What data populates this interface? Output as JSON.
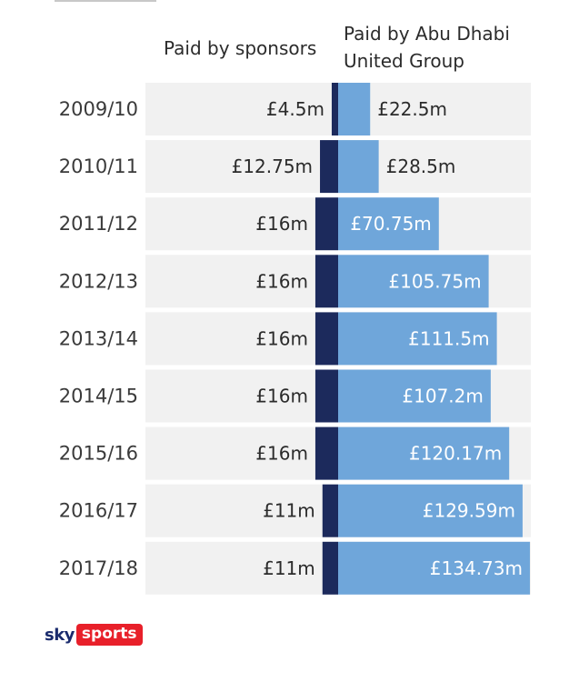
{
  "legend": {
    "sponsors": "Paid by sponsors",
    "adug": "Paid by Abu Dhabi United Group"
  },
  "colors": {
    "row_background": "#f1f1f1",
    "sponsors": "#1c2a5c",
    "adug": "#6fa6da",
    "text_dark": "#2b2b2b",
    "text_on_bar": "#ffffff"
  },
  "logo": {
    "brand": "sky",
    "product": "sports"
  },
  "chart_data": {
    "type": "bar",
    "orientation": "horizontal",
    "stacked": true,
    "categories": [
      "2009/10",
      "2010/11",
      "2011/12",
      "2012/13",
      "2013/14",
      "2014/15",
      "2015/16",
      "2016/17",
      "2017/18"
    ],
    "series": [
      {
        "name": "Paid by sponsors",
        "values": [
          4.5,
          12.75,
          16,
          16,
          16,
          16,
          16,
          11,
          11
        ],
        "labels": [
          "£4.5m",
          "£12.75m",
          "£16m",
          "£16m",
          "£16m",
          "£16m",
          "£16m",
          "£11m",
          "£11m"
        ],
        "color": "#1c2a5c"
      },
      {
        "name": "Paid by Abu Dhabi United Group",
        "values": [
          22.5,
          28.5,
          70.75,
          105.75,
          111.5,
          107.2,
          120.17,
          129.59,
          134.73
        ],
        "labels": [
          "£22.5m",
          "£28.5m",
          "£70.75m",
          "£105.75m",
          "£111.5m",
          "£107.2m",
          "£120.17m",
          "£129.59m",
          "£134.73m"
        ],
        "color": "#6fa6da"
      }
    ],
    "unit": "£m",
    "legend_position": "top",
    "grid": false
  }
}
